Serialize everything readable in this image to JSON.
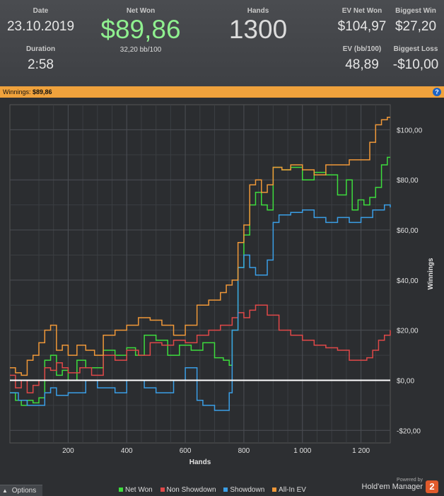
{
  "stats": {
    "date": {
      "label": "Date",
      "value": "23.10.2019"
    },
    "duration": {
      "label": "Duration",
      "value": "2:58"
    },
    "net_won": {
      "label": "Net Won",
      "value": "$89,86",
      "sub": "32,20 bb/100"
    },
    "hands": {
      "label": "Hands",
      "value": "1300"
    },
    "ev_net_won": {
      "label": "EV Net Won",
      "value": "$104,97"
    },
    "ev_bb100": {
      "label": "EV (bb/100)",
      "value": "48,89"
    },
    "biggest_win": {
      "label": "Biggest Win",
      "value": "$27,20"
    },
    "biggest_loss": {
      "label": "Biggest Loss",
      "value": "-$10,00"
    }
  },
  "banner": {
    "label": "Winnings:",
    "value": "$89,86",
    "help_icon": "help-icon",
    "help_text": "?"
  },
  "footer": {
    "options_label": "Options",
    "options_icon": "chevron-up-icon",
    "legend": [
      {
        "label": "Net Won",
        "color": "#3ddc3d"
      },
      {
        "label": "Non Showdown",
        "color": "#e04848"
      },
      {
        "label": "Showdown",
        "color": "#3a9ee6"
      },
      {
        "label": "All-In EV",
        "color": "#f09838"
      }
    ],
    "powered_by": "Powered by",
    "brand_name": "Hold'em Manager",
    "brand_logo": "2"
  },
  "chart_data": {
    "type": "line",
    "xlabel": "Hands",
    "ylabel": "Winnings",
    "xlim": [
      1,
      1300
    ],
    "ylim": [
      -25,
      110
    ],
    "x_ticks": [
      200,
      400,
      600,
      800,
      1000,
      1200
    ],
    "x_tick_labels": [
      "200",
      "400",
      "600",
      "800",
      "1 000",
      "1 200"
    ],
    "y_ticks": [
      -20,
      0,
      20,
      40,
      60,
      80,
      100
    ],
    "y_tick_labels": [
      "-$20,00",
      "$0,00",
      "$20,00",
      "$40,00",
      "$60,00",
      "$80,00",
      "$100,00"
    ],
    "grid": true,
    "zero_line": true,
    "series": [
      {
        "name": "Net Won",
        "color": "#3ddc3d",
        "x": [
          1,
          20,
          40,
          60,
          80,
          100,
          120,
          140,
          160,
          180,
          200,
          230,
          260,
          290,
          320,
          360,
          400,
          430,
          460,
          500,
          540,
          580,
          620,
          660,
          700,
          730,
          750,
          760,
          780,
          800,
          820,
          840,
          860,
          880,
          900,
          930,
          960,
          1000,
          1040,
          1080,
          1120,
          1150,
          1170,
          1190,
          1210,
          1230,
          1250,
          1270,
          1290,
          1300
        ],
        "values": [
          -5,
          -8,
          -10,
          -8,
          -9,
          -7,
          8,
          10,
          2,
          4,
          0,
          8,
          5,
          5,
          12,
          10,
          13,
          10,
          18,
          16,
          10,
          14,
          12,
          15,
          9,
          8,
          6,
          20,
          45,
          58,
          70,
          75,
          70,
          68,
          85,
          84,
          85,
          80,
          83,
          82,
          74,
          80,
          68,
          72,
          70,
          73,
          77,
          86,
          89,
          89
        ]
      },
      {
        "name": "Non Showdown",
        "color": "#e04848",
        "x": [
          1,
          20,
          40,
          60,
          80,
          100,
          120,
          140,
          160,
          180,
          200,
          240,
          280,
          320,
          360,
          400,
          440,
          480,
          520,
          560,
          600,
          640,
          680,
          720,
          760,
          780,
          800,
          820,
          840,
          880,
          920,
          960,
          1000,
          1040,
          1080,
          1120,
          1160,
          1200,
          1220,
          1240,
          1260,
          1280,
          1300
        ],
        "values": [
          2,
          -3,
          0,
          -5,
          -2,
          0,
          5,
          4,
          7,
          5,
          3,
          5,
          2,
          10,
          8,
          12,
          10,
          15,
          14,
          16,
          15,
          18,
          20,
          22,
          25,
          27,
          25,
          28,
          30,
          26,
          20,
          18,
          16,
          14,
          13,
          12,
          8,
          8,
          9,
          12,
          16,
          18,
          20
        ]
      },
      {
        "name": "Showdown",
        "color": "#3a9ee6",
        "x": [
          1,
          30,
          60,
          100,
          120,
          140,
          160,
          200,
          260,
          300,
          360,
          400,
          460,
          500,
          560,
          600,
          640,
          660,
          700,
          730,
          750,
          760,
          780,
          800,
          820,
          840,
          880,
          900,
          920,
          960,
          1000,
          1040,
          1080,
          1120,
          1160,
          1200,
          1240,
          1280,
          1300
        ],
        "values": [
          -5,
          -8,
          -10,
          -10,
          -5,
          -3,
          -6,
          -5,
          0,
          -3,
          -5,
          0,
          -3,
          -5,
          0,
          5,
          -8,
          -10,
          -12,
          -12,
          -5,
          20,
          45,
          50,
          45,
          42,
          48,
          63,
          66,
          67,
          68,
          65,
          63,
          65,
          63,
          65,
          68,
          70,
          69
        ]
      },
      {
        "name": "All-In EV",
        "color": "#f09838",
        "x": [
          1,
          20,
          40,
          60,
          80,
          100,
          120,
          140,
          160,
          180,
          200,
          230,
          260,
          290,
          320,
          360,
          400,
          440,
          480,
          520,
          560,
          600,
          640,
          680,
          720,
          740,
          760,
          780,
          800,
          820,
          840,
          860,
          880,
          900,
          930,
          960,
          1000,
          1040,
          1080,
          1120,
          1160,
          1200,
          1230,
          1250,
          1270,
          1290,
          1300
        ],
        "values": [
          5,
          3,
          2,
          8,
          10,
          15,
          20,
          22,
          12,
          14,
          10,
          14,
          12,
          10,
          18,
          20,
          22,
          25,
          24,
          22,
          18,
          22,
          30,
          32,
          35,
          38,
          40,
          55,
          62,
          78,
          80,
          75,
          78,
          85,
          84,
          86,
          84,
          82,
          86,
          86,
          88,
          88,
          95,
          102,
          104,
          105,
          105
        ]
      }
    ]
  }
}
